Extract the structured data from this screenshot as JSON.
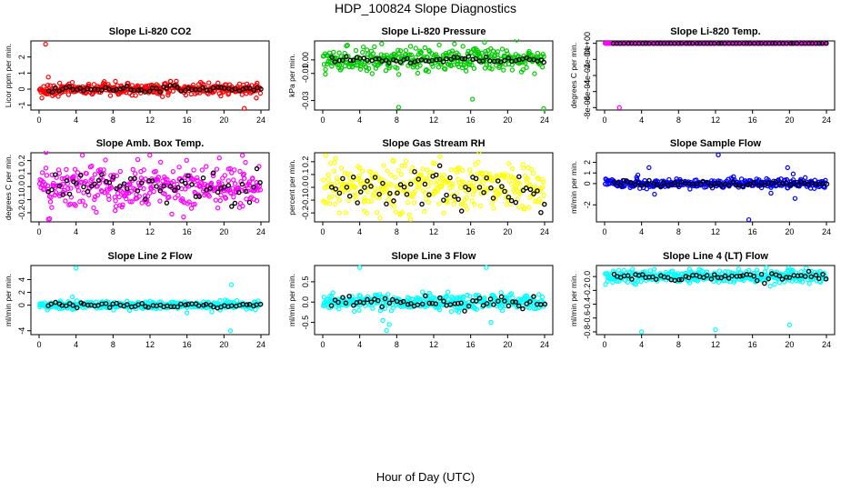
{
  "title": "HDP_100824  Slope Diagnostics",
  "xlabel": "Hour of Day (UTC)",
  "colors": {
    "overlay": "#000000"
  },
  "chart_data": [
    {
      "type": "scatter",
      "title": "Slope Li-820 CO2",
      "ylabel": "Licor ppm per min.",
      "color": "#ff0000",
      "xlim": [
        0,
        24
      ],
      "ylim": [
        -1.3,
        3.0
      ],
      "xticks": [
        "0",
        "4",
        "8",
        "12",
        "16",
        "20",
        "24"
      ],
      "yticks": [
        {
          "v": -1,
          "label": "-1"
        },
        {
          "v": 0,
          "label": "0"
        },
        {
          "v": 1,
          "label": "1"
        },
        {
          "v": 2,
          "label": "2"
        }
      ],
      "spread": 0.18,
      "black_spread": 0.1,
      "outliers": [
        [
          0.7,
          2.8
        ],
        [
          1.0,
          0.75
        ],
        [
          0.3,
          -0.55
        ],
        [
          22.2,
          -1.2
        ],
        [
          23.5,
          -0.55
        ]
      ]
    },
    {
      "type": "scatter",
      "title": "Slope Li-820 Pressure",
      "ylabel": "kPa per min.",
      "color": "#00cc00",
      "xlim": [
        0,
        24
      ],
      "ylim": [
        -0.037,
        0.014
      ],
      "xticks": [
        "0",
        "4",
        "8",
        "12",
        "16",
        "20",
        "24"
      ],
      "yticks": [
        {
          "v": -0.03,
          "label": "-0.03"
        },
        {
          "v": -0.01,
          "label": "-0.01"
        },
        {
          "v": 0.0,
          "label": "0.00"
        }
      ],
      "spread": 0.004,
      "black_spread": 0.001,
      "outliers": [
        [
          8.2,
          -0.035
        ],
        [
          16.2,
          -0.029
        ],
        [
          23.9,
          -0.036
        ],
        [
          17.5,
          0.013
        ],
        [
          9.5,
          0.01
        ],
        [
          0.3,
          -0.007
        ],
        [
          12.6,
          0.011
        ]
      ]
    },
    {
      "type": "scatter",
      "title": "Slope Li-820 Temp.",
      "ylabel": "degrees C per min.",
      "color": "#ff00ff",
      "xlim": [
        0,
        24
      ],
      "ylim": [
        -0.00083,
        3e-05
      ],
      "xticks": [
        "0",
        "4",
        "8",
        "12",
        "16",
        "20",
        "24"
      ],
      "yticks": [
        {
          "v": -0.0008,
          "label": "-8e-04"
        },
        {
          "v": -0.0006,
          "label": "-6e-04"
        },
        {
          "v": -0.0004,
          "label": "-4e-04"
        },
        {
          "v": -0.0002,
          "label": "-2e-04"
        },
        {
          "v": 0.0,
          "label": "0e+00"
        }
      ],
      "spread": 0.0,
      "black_spread": 0.0,
      "outliers": [
        [
          1.6,
          -0.0008
        ]
      ]
    },
    {
      "type": "scatter",
      "title": "Slope Amb. Box Temp.",
      "ylabel": "degrees C per min.",
      "color": "#ff00ff",
      "xlim": [
        0,
        24
      ],
      "ylim": [
        -0.27,
        0.26
      ],
      "xticks": [
        "0",
        "4",
        "8",
        "12",
        "16",
        "20",
        "24"
      ],
      "yticks": [
        {
          "v": -0.2,
          "label": "-0.2"
        },
        {
          "v": -0.1,
          "label": "-0.1"
        },
        {
          "v": 0.0,
          "label": "0.0"
        },
        {
          "v": 0.1,
          "label": "0.1"
        },
        {
          "v": 0.2,
          "label": "0.2"
        }
      ],
      "spread": 0.09,
      "black_spread": 0.07,
      "outliers": [
        [
          1.0,
          -0.25
        ],
        [
          22.0,
          0.24
        ],
        [
          19.5,
          0.22
        ]
      ]
    },
    {
      "type": "scatter",
      "title": "Slope Gas Stream RH",
      "ylabel": "percent per min.",
      "color": "#ffff00",
      "xlim": [
        0,
        24
      ],
      "ylim": [
        -0.27,
        0.27
      ],
      "xticks": [
        "0",
        "4",
        "8",
        "12",
        "16",
        "20",
        "24"
      ],
      "yticks": [
        {
          "v": -0.2,
          "label": "-0.2"
        },
        {
          "v": -0.1,
          "label": "-0.1"
        },
        {
          "v": 0.0,
          "label": "0.0"
        },
        {
          "v": 0.1,
          "label": "0.1"
        },
        {
          "v": 0.2,
          "label": "0.2"
        }
      ],
      "spread": 0.09,
      "black_spread": 0.08,
      "outliers": [
        [
          6.2,
          -0.24
        ],
        [
          12.7,
          0.24
        ],
        [
          9.5,
          -0.25
        ]
      ]
    },
    {
      "type": "scatter",
      "title": "Slope Sample Flow",
      "ylabel": "ml/min per min.",
      "color": "#0000ff",
      "xlim": [
        0,
        24
      ],
      "ylim": [
        -3.6,
        2.9
      ],
      "xticks": [
        "0",
        "4",
        "8",
        "12",
        "16",
        "20",
        "24"
      ],
      "yticks": [
        {
          "v": -2,
          "label": "-2"
        },
        {
          "v": 0,
          "label": "0"
        },
        {
          "v": 1,
          "label": "1"
        },
        {
          "v": 2,
          "label": "2"
        }
      ],
      "spread": 0.2,
      "black_spread": 0.12,
      "outliers": [
        [
          12.3,
          2.7
        ],
        [
          15.6,
          -3.4
        ],
        [
          4.8,
          1.5
        ],
        [
          5.4,
          -1.0
        ],
        [
          19.8,
          1.5
        ],
        [
          20.4,
          0.9
        ],
        [
          3.6,
          0.8
        ],
        [
          18.0,
          -0.9
        ],
        [
          20.6,
          -1.4
        ]
      ]
    },
    {
      "type": "scatter",
      "title": "Slope Line 2 Flow",
      "ylabel": "ml/min per min.",
      "color": "#00ffff",
      "xlim": [
        0,
        24
      ],
      "ylim": [
        -4.6,
        6.2
      ],
      "xticks": [
        "0",
        "4",
        "8",
        "12",
        "16",
        "20",
        "24"
      ],
      "yticks": [
        {
          "v": -4,
          "label": "-4"
        },
        {
          "v": 0,
          "label": "0"
        },
        {
          "v": 2,
          "label": "2"
        },
        {
          "v": 4,
          "label": "4"
        }
      ],
      "spread": 0.3,
      "black_spread": 0.2,
      "outliers": [
        [
          4.0,
          5.8
        ],
        [
          20.7,
          -4.0
        ],
        [
          20.8,
          3.2
        ],
        [
          3.6,
          1.3
        ],
        [
          16.0,
          -1.2
        ]
      ]
    },
    {
      "type": "scatter",
      "title": "Slope Line 3 Flow",
      "ylabel": "ml/min per min.",
      "color": "#00ffff",
      "xlim": [
        0,
        24
      ],
      "ylim": [
        -0.8,
        0.9
      ],
      "xticks": [
        "0",
        "4",
        "8",
        "12",
        "16",
        "20",
        "24"
      ],
      "yticks": [
        {
          "v": -0.5,
          "label": "-0.5"
        },
        {
          "v": 0.0,
          "label": "0.0"
        },
        {
          "v": 0.5,
          "label": "0.5"
        }
      ],
      "spread": 0.09,
      "black_spread": 0.07,
      "outliers": [
        [
          4.0,
          0.85
        ],
        [
          6.9,
          -0.7
        ],
        [
          7.2,
          -0.55
        ],
        [
          17.7,
          0.85
        ],
        [
          18.2,
          -0.5
        ],
        [
          6.5,
          -0.45
        ]
      ]
    },
    {
      "type": "scatter",
      "title": "Slope Line 4 (LT) Flow",
      "ylabel": "ml/min per min.",
      "color": "#00ffff",
      "xlim": [
        0,
        24
      ],
      "ylim": [
        -0.84,
        0.16
      ],
      "xticks": [
        "0",
        "4",
        "8",
        "12",
        "16",
        "20",
        "24"
      ],
      "yticks": [
        {
          "v": -0.8,
          "label": "-0.8"
        },
        {
          "v": -0.6,
          "label": "-0.6"
        },
        {
          "v": -0.4,
          "label": "-0.4"
        },
        {
          "v": -0.2,
          "label": "-0.2"
        },
        {
          "v": 0.0,
          "label": "0.0"
        }
      ],
      "spread": 0.045,
      "black_spread": 0.03,
      "outliers": [
        [
          4.0,
          -0.8
        ],
        [
          12.0,
          -0.77
        ],
        [
          20.0,
          -0.7
        ],
        [
          17.5,
          0.13
        ]
      ]
    }
  ]
}
